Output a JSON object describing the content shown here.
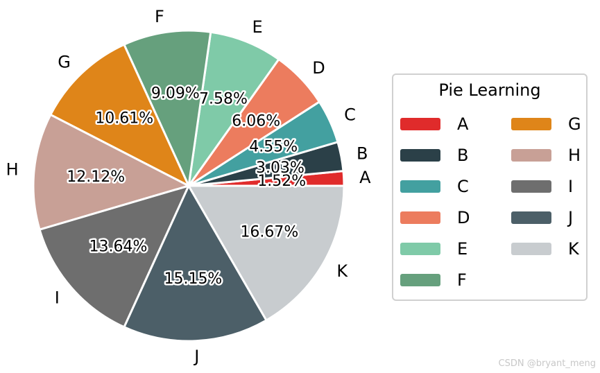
{
  "chart_data": {
    "type": "pie",
    "title": "",
    "legend_title": "Pie Learning",
    "legend_placement": "right",
    "start_angle_deg": 0,
    "direction": "counterclockwise",
    "slices": [
      {
        "label": "A",
        "value": 1.52,
        "pct_label": "1.52%",
        "color": "#e02b2b"
      },
      {
        "label": "B",
        "value": 3.03,
        "pct_label": "3.03%",
        "color": "#2b4048"
      },
      {
        "label": "C",
        "value": 4.55,
        "pct_label": "4.55%",
        "color": "#43a0a0"
      },
      {
        "label": "D",
        "value": 6.06,
        "pct_label": "6.06%",
        "color": "#ec7c5e"
      },
      {
        "label": "E",
        "value": 7.58,
        "pct_label": "7.58%",
        "color": "#7fcaa8"
      },
      {
        "label": "F",
        "value": 9.09,
        "pct_label": "9.09%",
        "color": "#66a07d"
      },
      {
        "label": "G",
        "value": 10.61,
        "pct_label": "10.61%",
        "color": "#df8519"
      },
      {
        "label": "H",
        "value": 12.12,
        "pct_label": "12.12%",
        "color": "#c8a096"
      },
      {
        "label": "I",
        "value": 13.64,
        "pct_label": "13.64%",
        "color": "#6e6e6e"
      },
      {
        "label": "J",
        "value": 15.15,
        "pct_label": "15.15%",
        "color": "#4c5f68"
      },
      {
        "label": "K",
        "value": 16.67,
        "pct_label": "16.67%",
        "color": "#c8cccf"
      }
    ]
  },
  "watermark": "CSDN @bryant_meng"
}
